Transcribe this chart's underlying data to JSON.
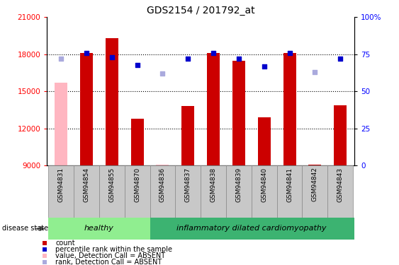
{
  "title": "GDS2154 / 201792_at",
  "samples": [
    "GSM94831",
    "GSM94854",
    "GSM94855",
    "GSM94870",
    "GSM94836",
    "GSM94837",
    "GSM94838",
    "GSM94839",
    "GSM94840",
    "GSM94841",
    "GSM94842",
    "GSM94843"
  ],
  "count_values": [
    15700,
    18100,
    19300,
    12800,
    9100,
    13800,
    18100,
    17500,
    12900,
    18100,
    9100,
    13900
  ],
  "count_absent": [
    true,
    false,
    false,
    false,
    true,
    false,
    false,
    false,
    false,
    false,
    false,
    false
  ],
  "rank_values": [
    72,
    76,
    73,
    68,
    62,
    72,
    76,
    72,
    67,
    76,
    63,
    72
  ],
  "rank_absent": [
    true,
    false,
    false,
    false,
    true,
    false,
    false,
    false,
    false,
    false,
    true,
    false
  ],
  "ymin": 9000,
  "ymax": 21000,
  "yticks_left": [
    9000,
    12000,
    15000,
    18000,
    21000
  ],
  "yticks_right": [
    0,
    25,
    50,
    75,
    100
  ],
  "healthy_count": 4,
  "bar_color": "#CC0000",
  "bar_absent_color": "#FFB6C1",
  "rank_color": "#0000CC",
  "rank_absent_color": "#AAAADD",
  "bar_width": 0.5,
  "healthy_color": "#90EE90",
  "disease_color": "#3CB371",
  "disease_label": "disease state",
  "group_labels": [
    "healthy",
    "inflammatory dilated cardiomyopathy"
  ],
  "legend_labels": [
    "count",
    "percentile rank within the sample",
    "value, Detection Call = ABSENT",
    "rank, Detection Call = ABSENT"
  ],
  "legend_colors": [
    "#CC0000",
    "#0000CC",
    "#FFB6C1",
    "#AAAADD"
  ]
}
